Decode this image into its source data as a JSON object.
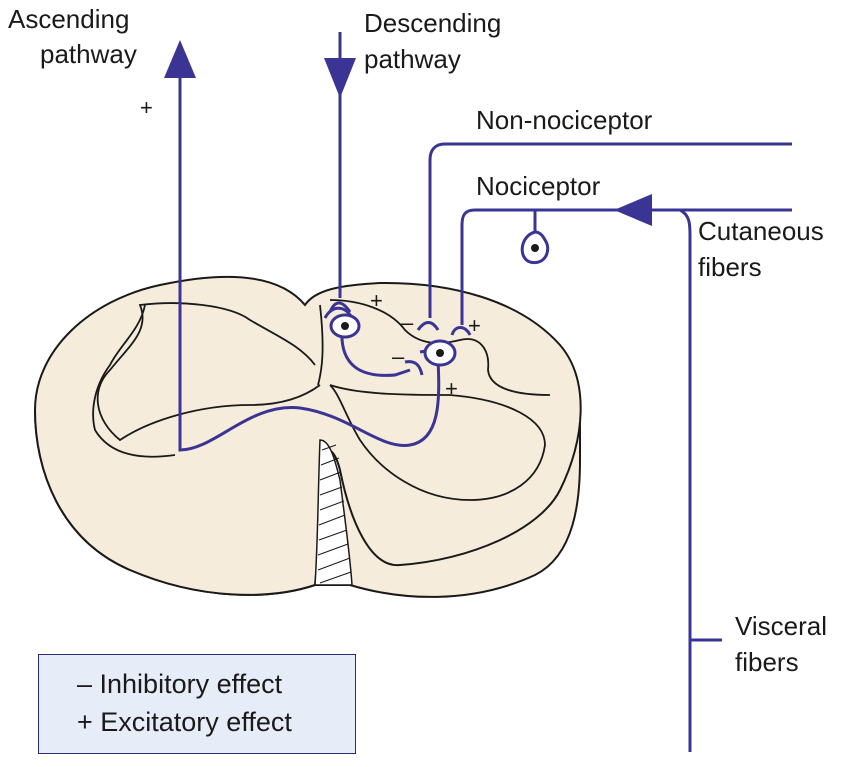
{
  "labels": {
    "ascending_line1": "Ascending",
    "ascending_line2": "pathway",
    "descending_line1": "Descending",
    "descending_line2": "pathway",
    "non_nociceptor": "Non-nociceptor",
    "nociceptor": "Nociceptor",
    "cutaneous_line1": "Cutaneous",
    "cutaneous_line2": "fibers",
    "visceral_line1": "Visceral",
    "visceral_line2": "fibers"
  },
  "signs": {
    "ascending_plus": "+",
    "descending_plus": "+",
    "nonnoci_minus": "–",
    "noci_plus": "+",
    "interneuron_minus": "–",
    "projection_plus": "+"
  },
  "legend": {
    "inhibitory": "– Inhibitory effect",
    "excitatory": "+ Excitatory effect"
  },
  "colors": {
    "pathway": "#3a3594",
    "cord_fill": "#f5ecdb",
    "cord_stroke": "#1a1a1a",
    "legend_bg": "#e6edf8",
    "legend_border": "#2b2b8a"
  }
}
